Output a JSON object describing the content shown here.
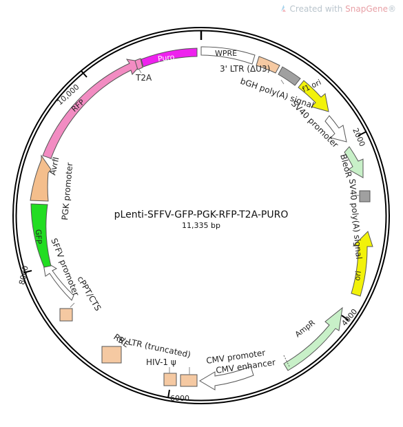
{
  "watermark": {
    "prefix": "Created with ",
    "brand": "SnapGene",
    "suffix": "®"
  },
  "plasmid": {
    "name": "pLenti-SFFV-GFP-PGK-RFP-T2A-PURO",
    "size": "11,335 bp"
  },
  "ticks": [
    "2000",
    "4000",
    "6000",
    "8000",
    "10,000"
  ],
  "features": {
    "puro": "Puro",
    "t2a": "T2A",
    "rfp": "RFP",
    "avrii": "AvrII",
    "pgk": "PGK promoter",
    "gfp": "GFP",
    "sffv": "SFFV promoter",
    "cppt": "cPPT/CTS",
    "rre": "RRE",
    "ltr5": "5' LTR (truncated)",
    "hiv": "HIV-1 ψ",
    "cmvp": "CMV promoter",
    "cmve": "CMV enhancer",
    "ampr": "AmpR",
    "ori": "ori",
    "sv40pa": "SV40 poly(A) signal",
    "bleor": "BleoR",
    "sv40p": "SV40 promoter",
    "f1ori": "f1 ori",
    "bgh": "bGH poly(A) signal",
    "ltr3": "3' LTR (ΔU3)",
    "wpre": "WPRE"
  },
  "colors": {
    "puro": "#ee22ee",
    "rfp": "#f28cc2",
    "gfp": "#22dd22",
    "pgk": "#f4be8c",
    "ltr": "#f5c9a2",
    "f1ori": "#f2f20a",
    "ori": "#f2f20a",
    "ampr": "#c8f0c8",
    "bleor": "#c8f0c8",
    "polya": "#a0a0a0",
    "promoter": "#ffffff"
  }
}
